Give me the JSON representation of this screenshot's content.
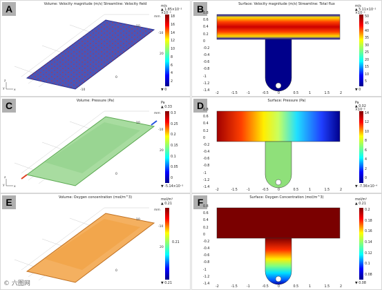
{
  "panels": {
    "A": {
      "label": "A",
      "title": "Volume: Velocity magnitude (m/s)   Streamline: Velocity field",
      "unit": "m/s",
      "unit2": "×10⁻³",
      "cb_max": "▲ 1.85×10⁻²",
      "cb_ticks": [
        "18",
        "16",
        "14",
        "12",
        "10",
        "8",
        "6",
        "4",
        "2"
      ],
      "cb_min": "▼ 0"
    },
    "B": {
      "label": "B",
      "title": "Surface: Velocity magnitude (m/s)   Streamline: Total flux",
      "unit": "m/s",
      "cb_max": "▲ 5.11×10⁻²",
      "unit2": "×10⁻³",
      "cb_ticks": [
        "50",
        "45",
        "40",
        "35",
        "30",
        "25",
        "20",
        "15",
        "10",
        "5"
      ],
      "cb_min": "▼ 0"
    },
    "C": {
      "label": "C",
      "title": "Volume: Pressure (Pa)",
      "unit": "Pa",
      "cb_max": "▲ 0.33",
      "cb_ticks": [
        "0.3",
        "0.25",
        "0.2",
        "0.15",
        "0.1",
        "0.05",
        "0"
      ],
      "cb_min": "▼ -5.14×10⁻³"
    },
    "D": {
      "label": "D",
      "title": "Surface: Pressure (Pa)",
      "unit": "Pa",
      "cb_max": "▲ 0.02",
      "unit2": "×10⁻³",
      "cb_ticks": [
        "14",
        "12",
        "10",
        "8",
        "6",
        "4",
        "2",
        "0"
      ],
      "cb_min": "▼ -7.36×10⁻⁴"
    },
    "E": {
      "label": "E",
      "title": "Volume: Oxygen concentration (mol/m^3)",
      "unit": "mol/m³",
      "cb_max": "▲ 0.21",
      "cb_ticks": [
        "0.21"
      ],
      "cb_min": "▼ 0.21"
    },
    "F": {
      "label": "F",
      "title": "Surface: Oxygen Concentration (mol/m^3)",
      "unit": "mol/m³",
      "cb_max": "▲ 0.21",
      "cb_ticks": [
        "0.2",
        "0.18",
        "0.16",
        "0.14",
        "0.12",
        "0.1",
        "0.08"
      ],
      "cb_min": "▼ 0.08"
    }
  },
  "axes2d": {
    "x_ticks": [
      "-2",
      "-1.5",
      "-1",
      "-0.5",
      "0",
      "0.5",
      "1",
      "1.5",
      "2"
    ],
    "y_ticks": [
      "0.8",
      "0.6",
      "0.4",
      "0.2",
      "0",
      "-0.2",
      "-0.4",
      "-0.6",
      "-0.8",
      "-1",
      "-1.2",
      "-1.4"
    ]
  },
  "axes3d": {
    "ticks": [
      "20",
      "10",
      "0",
      "-10"
    ],
    "unit": "mm",
    "axis_y": "y",
    "axis_z": "z",
    "axis_x": "x"
  },
  "watermark": "© 六图网"
}
